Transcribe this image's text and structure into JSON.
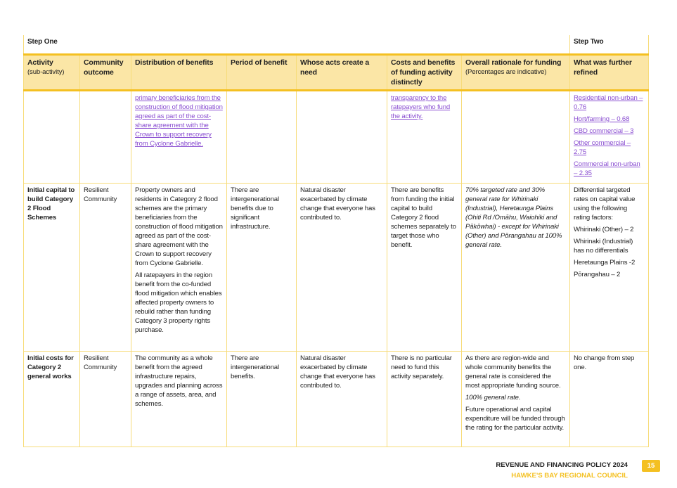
{
  "steps": {
    "one": "Step One",
    "two": "Step Two"
  },
  "headers": [
    {
      "title": "Activity",
      "sub": "(sub-activity)"
    },
    {
      "title": "Community outcome"
    },
    {
      "title": "Distribution of benefits"
    },
    {
      "title": "Period of benefit"
    },
    {
      "title": "Whose acts create a need"
    },
    {
      "title": "Costs and benefits of funding activity distinctly"
    },
    {
      "title": "Overall rationale for funding",
      "sub": "(Percentages are indicative)"
    },
    {
      "title": "What was further refined"
    }
  ],
  "rows": [
    [
      [],
      [],
      [
        {
          "t": "primary beneficiaries from the construction of flood mitigation agreed as part of the cost-share agreement with the Crown to support recovery from Cyclone Gabrielle.",
          "s": "link"
        }
      ],
      [],
      [],
      [
        {
          "t": "transparency to the ratepayers who fund the activity.",
          "s": "link"
        }
      ],
      [],
      [
        {
          "t": "Residential non-urban – 0.76",
          "s": "link"
        },
        {
          "t": "Hort/farming – 0.68",
          "s": "link"
        },
        {
          "t": "CBD commercial – 3",
          "s": "link"
        },
        {
          "t": "Other commercial – 2.75",
          "s": "link"
        },
        {
          "t": "Commercial non-urban – 2.35",
          "s": "link"
        }
      ]
    ],
    [
      [
        {
          "t": "Initial capital to build Category 2 Flood Schemes",
          "s": "bold"
        }
      ],
      [
        {
          "t": "Resilient Community"
        }
      ],
      [
        {
          "t": "Property owners and residents in Category 2 flood schemes are the primary beneficiaries from the construction of flood mitigation agreed as part of the cost-share agreement with the Crown to support recovery from Cyclone Gabrielle."
        },
        {
          "t": "All ratepayers in the region benefit from the co-funded flood mitigation which enables affected property owners to rebuild rather than funding Category 3 property rights purchase."
        }
      ],
      [
        {
          "t": "There are intergenerational benefits due to significant infrastructure."
        }
      ],
      [
        {
          "t": "Natural disaster exacerbated by climate change that everyone has contributed to."
        }
      ],
      [
        {
          "t": "There are benefits from funding the initial capital to build Category 2 flood schemes separately to target those who benefit."
        }
      ],
      [
        {
          "t": "70% targeted rate and 30% general rate for Whirinaki (Industrial), Heretaunga Plains (Ohiti Rd /Omāhu, Waiohiki and Pākōwhai) - except for Whirinaki (Other) and Pōrangahau at 100% general rate.",
          "s": "it"
        }
      ],
      [
        {
          "t": "Differential targeted rates on capital value using the following rating factors:"
        },
        {
          "t": "Whirinaki (Other) – 2"
        },
        {
          "t": "Whirinaki (Industrial) has no differentials"
        },
        {
          "t": "Heretaunga Plains -2"
        },
        {
          "t": "Pōrangahau – 2"
        }
      ]
    ],
    [
      [
        {
          "t": "Initial costs for Category 2 general works",
          "s": "bold"
        }
      ],
      [
        {
          "t": "Resilient Community"
        }
      ],
      [
        {
          "t": "The community as a whole benefit from the agreed infrastructure repairs, upgrades and planning across a range of assets, area, and schemes."
        }
      ],
      [
        {
          "t": "There are intergenerational benefits."
        }
      ],
      [
        {
          "t": "Natural disaster exacerbated by climate change that everyone has contributed to."
        }
      ],
      [
        {
          "t": "There is no particular need to fund this activity separately."
        }
      ],
      [
        {
          "t": "As there are region-wide and whole community benefits the general rate is considered the most appropriate funding source."
        },
        {
          "t": "100% general rate.",
          "s": "it"
        },
        {
          "t": "Future operational and capital expenditure will be funded through the rating for the particular activity."
        }
      ],
      [
        {
          "t": "No change from step one."
        }
      ]
    ]
  ],
  "footer": {
    "title": "REVENUE AND FINANCING POLICY 2024",
    "org": "HAWKE'S BAY REGIONAL COUNCIL",
    "page": "15"
  },
  "colors": {
    "accent": "#f4c021",
    "header_bg": "#fbe6a6",
    "link": "#8a4ed1"
  }
}
